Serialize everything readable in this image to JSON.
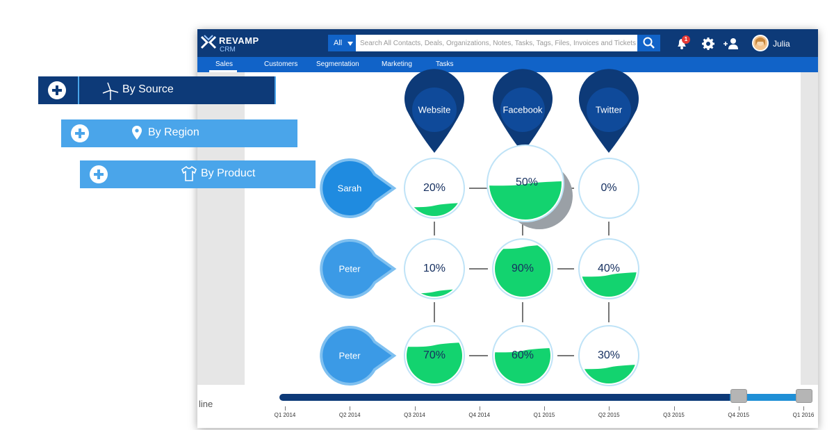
{
  "app": {
    "logo_text": "REVAMP",
    "logo_sub": "CRM",
    "search_scope": "All",
    "search_placeholder": "Search All Contacts, Deals, Organizations, Notes, Tasks, Tags, Files, Invoices and Tickets",
    "notification_count": "1",
    "user_name": "Julia",
    "icons": [
      "search-icon",
      "bell-icon",
      "gear-icon",
      "add-user-icon",
      "chevron-down-icon"
    ]
  },
  "nav": {
    "items": [
      "Sales",
      "Customers",
      "Segmentation",
      "Marketing",
      "Tasks"
    ],
    "active": "Sales"
  },
  "filters": [
    {
      "label": "By Source",
      "icon": "windmill-icon"
    },
    {
      "label": "By Region",
      "icon": "location-pin-icon"
    },
    {
      "label": "By Product",
      "icon": "shirt-icon"
    }
  ],
  "sources": [
    "Website",
    "Facebook",
    "Twitter"
  ],
  "people": [
    "Sarah",
    "Peter",
    "Peter"
  ],
  "matrix": [
    [
      {
        "label": "20%",
        "value": 20
      },
      {
        "label": "50%",
        "value": 50
      },
      {
        "label": "0%",
        "value": 0
      }
    ],
    [
      {
        "label": "10%",
        "value": 10
      },
      {
        "label": "90%",
        "value": 90
      },
      {
        "label": "40%",
        "value": 40
      }
    ],
    [
      {
        "label": "70%",
        "value": 70
      },
      {
        "label": "60%",
        "value": 60
      },
      {
        "label": "30%",
        "value": 30
      }
    ]
  ],
  "timeline": {
    "label": "line",
    "ticks": [
      "Q1 2014",
      "Q2 2014",
      "Q3 2014",
      "Q4 2014",
      "Q1 2015",
      "Q2 2015",
      "Q3 2015",
      "Q4 2015",
      "Q1 2016"
    ],
    "range": [
      "Q4 2015",
      "Q1 2016"
    ]
  },
  "colors": {
    "navy": "#0d3a78",
    "blue": "#1163c8",
    "light_blue": "#4aa5ea",
    "green": "#13d36f"
  }
}
